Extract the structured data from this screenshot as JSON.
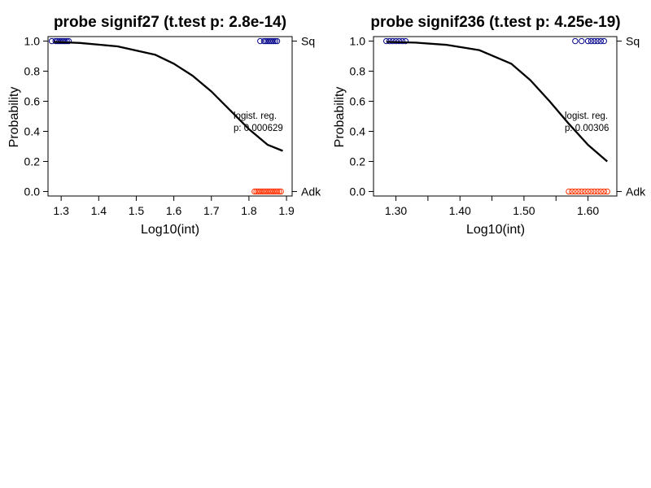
{
  "colors": {
    "sq_points": "#00008b",
    "adk_points": "#ff3300",
    "curve": "#000000",
    "frame": "#000000"
  },
  "chart_data": [
    {
      "type": "scatter",
      "title": "probe signif27 (t.test p: 2.8e-14)",
      "xlabel": "Log10(int)",
      "ylabel": "Probability",
      "xlim": [
        1.265,
        1.915
      ],
      "ylim": [
        -0.03,
        1.03
      ],
      "xticks": [
        1.3,
        1.4,
        1.5,
        1.6,
        1.7,
        1.8,
        1.9
      ],
      "xtick_labels": [
        "1.3",
        "1.4",
        "1.5",
        "1.6",
        "1.7",
        "1.8",
        "1.9"
      ],
      "yticks": [
        0.0,
        0.2,
        0.4,
        0.6,
        0.8,
        1.0
      ],
      "ytick_labels": [
        "0.0",
        "0.2",
        "0.4",
        "0.6",
        "0.8",
        "1.0"
      ],
      "right_axis": {
        "ticks": [
          1.0,
          0.0
        ],
        "labels": [
          "Sq",
          "Adk"
        ]
      },
      "annotation": [
        "logist. reg.",
        "p: 0.000629"
      ],
      "curve": {
        "x": [
          1.28,
          1.35,
          1.45,
          1.55,
          1.6,
          1.65,
          1.7,
          1.75,
          1.8,
          1.85,
          1.89
        ],
        "y": [
          0.995,
          0.988,
          0.965,
          0.91,
          0.85,
          0.77,
          0.665,
          0.54,
          0.415,
          0.31,
          0.27
        ]
      },
      "series": [
        {
          "name": "Sq",
          "x": [
            1.275,
            1.285,
            1.29,
            1.295,
            1.3,
            1.305,
            1.31,
            1.315,
            1.32,
            1.83,
            1.84,
            1.845,
            1.85,
            1.855,
            1.86,
            1.865,
            1.87,
            1.875
          ],
          "y": [
            1,
            1,
            1,
            1,
            1,
            1,
            1,
            1,
            1,
            1,
            1,
            1,
            1,
            1,
            1,
            1,
            1,
            1
          ]
        },
        {
          "name": "Adk",
          "x": [
            1.815,
            1.82,
            1.825,
            1.83,
            1.835,
            1.84,
            1.845,
            1.85,
            1.855,
            1.86,
            1.865,
            1.87,
            1.875,
            1.88,
            1.885
          ],
          "y": [
            0,
            0,
            0,
            0,
            0,
            0,
            0,
            0,
            0,
            0,
            0,
            0,
            0,
            0,
            0
          ]
        }
      ]
    },
    {
      "type": "scatter",
      "title": "probe signif236 (t.test p: 4.25e-19)",
      "xlabel": "Log10(int)",
      "ylabel": "Probability",
      "xlim": [
        1.265,
        1.645
      ],
      "ylim": [
        -0.03,
        1.03
      ],
      "xticks": [
        1.3,
        1.35,
        1.4,
        1.45,
        1.5,
        1.55,
        1.6
      ],
      "xtick_labels": [
        "1.30",
        "",
        "1.40",
        "",
        "1.50",
        "",
        "1.60"
      ],
      "yticks": [
        0.0,
        0.2,
        0.4,
        0.6,
        0.8,
        1.0
      ],
      "ytick_labels": [
        "0.0",
        "0.2",
        "0.4",
        "0.6",
        "0.8",
        "1.0"
      ],
      "right_axis": {
        "ticks": [
          1.0,
          0.0
        ],
        "labels": [
          "Sq",
          "Adk"
        ]
      },
      "annotation": [
        "logist. reg.",
        "p: 0.00306"
      ],
      "curve": {
        "x": [
          1.285,
          1.33,
          1.38,
          1.43,
          1.48,
          1.51,
          1.54,
          1.57,
          1.6,
          1.63
        ],
        "y": [
          0.995,
          0.99,
          0.975,
          0.94,
          0.85,
          0.74,
          0.6,
          0.45,
          0.31,
          0.2
        ]
      },
      "series": [
        {
          "name": "Sq",
          "x": [
            1.285,
            1.29,
            1.295,
            1.3,
            1.305,
            1.31,
            1.315,
            1.58,
            1.59,
            1.6,
            1.605,
            1.61,
            1.615,
            1.62,
            1.625
          ],
          "y": [
            1,
            1,
            1,
            1,
            1,
            1,
            1,
            1,
            1,
            1,
            1,
            1,
            1,
            1,
            1
          ]
        },
        {
          "name": "Adk",
          "x": [
            1.57,
            1.575,
            1.58,
            1.585,
            1.59,
            1.595,
            1.6,
            1.605,
            1.61,
            1.615,
            1.62,
            1.625,
            1.63
          ],
          "y": [
            0,
            0,
            0,
            0,
            0,
            0,
            0,
            0,
            0,
            0,
            0,
            0,
            0
          ]
        }
      ]
    }
  ]
}
